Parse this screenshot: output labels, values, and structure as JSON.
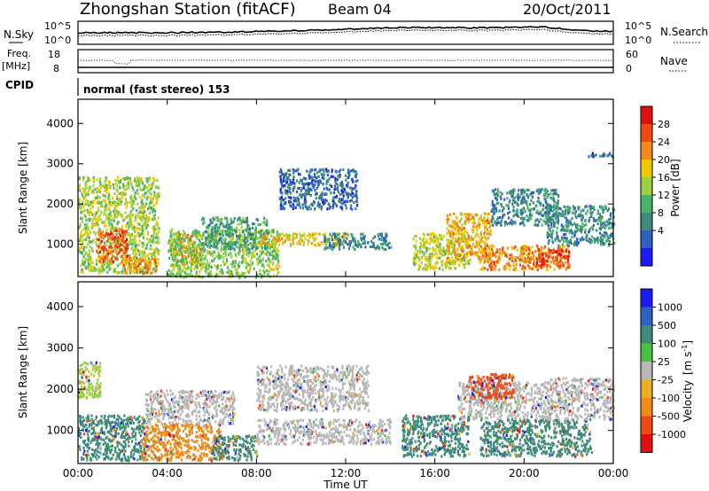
{
  "header": {
    "title": "Zhongshan Station (fitACF)",
    "beam": "Beam 04",
    "date": "20/Oct/2011"
  },
  "top_panels": {
    "nsky": {
      "left_label": "N.Sky",
      "left_ticks": [
        "10^5",
        "10^0"
      ],
      "right_label": "N.Search",
      "right_ticks": [
        "10^5",
        "10^0"
      ]
    },
    "freq": {
      "left_label_line1": "Freq.",
      "left_label_line2": "[MHz]",
      "left_ticks": [
        "18",
        "8"
      ],
      "right_label": "Nave",
      "right_ticks": [
        "60",
        "0"
      ]
    },
    "cpid": {
      "label": "CPID",
      "text": "normal (fast stereo) 153"
    }
  },
  "chart_data": [
    {
      "type": "heatmap",
      "title": "",
      "xlabel": "Time UT",
      "ylabel": "Slant Range [km]",
      "xlim": [
        "00:00",
        "24:00"
      ],
      "ylim": [
        200,
        4600
      ],
      "x_ticks": [
        "00:00",
        "04:00",
        "08:00",
        "12:00",
        "16:00",
        "20:00",
        "00:00"
      ],
      "y_ticks": [
        1000,
        2000,
        3000,
        4000
      ],
      "y_tick_labels": [
        "1000",
        "2000",
        "3000",
        "4000"
      ],
      "colorbar": {
        "label": "Power [dB]",
        "ticks": [
          "28",
          "24",
          "20",
          "16",
          "12",
          "8",
          "4"
        ],
        "range": [
          0,
          30
        ],
        "colors": [
          "#1a1cf0",
          "#3060c0",
          "#3f8a78",
          "#48b36a",
          "#9cd040",
          "#f0c800",
          "#f08a1a",
          "#f04a14",
          "#e01010"
        ]
      },
      "regions": [
        {
          "t": [
            0.0,
            3.6
          ],
          "r": [
            300,
            2700
          ],
          "level": 15
        },
        {
          "t": [
            0.8,
            2.2
          ],
          "r": [
            600,
            1400
          ],
          "level": 24
        },
        {
          "t": [
            2.0,
            3.5
          ],
          "r": [
            300,
            700
          ],
          "level": 22
        },
        {
          "t": [
            4.2,
            5.5
          ],
          "r": [
            500,
            1300
          ],
          "level": 22
        },
        {
          "t": [
            4.0,
            9.0
          ],
          "r": [
            200,
            1400
          ],
          "level": 14
        },
        {
          "t": [
            5.5,
            8.5
          ],
          "r": [
            900,
            1700
          ],
          "level": 10
        },
        {
          "t": [
            8.0,
            12.0
          ],
          "r": [
            1000,
            1300
          ],
          "level": 18
        },
        {
          "t": [
            9.0,
            12.5
          ],
          "r": [
            1900,
            2900
          ],
          "level": 6
        },
        {
          "t": [
            11.0,
            14.0
          ],
          "r": [
            900,
            1300
          ],
          "level": 8
        },
        {
          "t": [
            15.0,
            17.5
          ],
          "r": [
            400,
            1300
          ],
          "level": 16
        },
        {
          "t": [
            16.5,
            18.5
          ],
          "r": [
            600,
            1800
          ],
          "level": 20
        },
        {
          "t": [
            18.0,
            22.0
          ],
          "r": [
            400,
            1000
          ],
          "level": 22
        },
        {
          "t": [
            18.5,
            21.5
          ],
          "r": [
            1500,
            2400
          ],
          "level": 8
        },
        {
          "t": [
            20.5,
            22.0
          ],
          "r": [
            500,
            900
          ],
          "level": 26
        },
        {
          "t": [
            21.0,
            24.0
          ],
          "r": [
            1000,
            2000
          ],
          "level": 9
        },
        {
          "t": [
            22.5,
            24.0
          ],
          "r": [
            3200,
            3300
          ],
          "level": 6
        }
      ]
    },
    {
      "type": "heatmap",
      "title": "",
      "xlabel": "Time UT",
      "ylabel": "Slant Range [km]",
      "xlim": [
        "00:00",
        "24:00"
      ],
      "ylim": [
        200,
        4600
      ],
      "x_ticks": [
        "00:00",
        "04:00",
        "08:00",
        "12:00",
        "16:00",
        "20:00",
        "00:00"
      ],
      "y_ticks": [
        1000,
        2000,
        3000,
        4000
      ],
      "y_tick_labels": [
        "1000",
        "2000",
        "3000",
        "4000"
      ],
      "colorbar": {
        "label_main": "Velocity",
        "label_unit": "[m s",
        "label_exp": "-1",
        "label_close": "]",
        "ticks": [
          "1000",
          "500",
          "100",
          "25",
          "-25",
          "-100",
          "-500",
          "-1000"
        ],
        "colors": [
          "#1a1cf0",
          "#3060c0",
          "#3f8a78",
          "#48c040",
          "#b8b8b8",
          "#e8b020",
          "#f08a1a",
          "#f04a14",
          "#e01010"
        ]
      },
      "regions": [
        {
          "t": [
            0.0,
            3.0
          ],
          "r": [
            300,
            1400
          ],
          "level": "#3f8a78"
        },
        {
          "t": [
            0.0,
            1.0
          ],
          "r": [
            1800,
            2700
          ],
          "level": "#9cd040"
        },
        {
          "t": [
            2.8,
            6.5
          ],
          "r": [
            300,
            1200
          ],
          "level": "#f08a1a"
        },
        {
          "t": [
            3.0,
            7.0
          ],
          "r": [
            1200,
            2000
          ],
          "level": "#b8b8b8"
        },
        {
          "t": [
            6.0,
            8.0
          ],
          "r": [
            300,
            900
          ],
          "level": "#3f8a78"
        },
        {
          "t": [
            8.0,
            13.0
          ],
          "r": [
            1500,
            2600
          ],
          "level": "#b8b8b8"
        },
        {
          "t": [
            8.0,
            14.0
          ],
          "r": [
            700,
            1300
          ],
          "level": "#b8b8b8"
        },
        {
          "t": [
            14.5,
            17.5
          ],
          "r": [
            400,
            1400
          ],
          "level": "#3f8a78"
        },
        {
          "t": [
            17.0,
            21.0
          ],
          "r": [
            1300,
            2200
          ],
          "level": "#b8b8b8"
        },
        {
          "t": [
            17.5,
            19.5
          ],
          "r": [
            1800,
            2400
          ],
          "level": "#f04a14"
        },
        {
          "t": [
            18.0,
            23.0
          ],
          "r": [
            400,
            1300
          ],
          "level": "#3f8a78"
        },
        {
          "t": [
            21.0,
            24.0
          ],
          "r": [
            1300,
            2300
          ],
          "level": "#b8b8b8"
        }
      ]
    }
  ]
}
